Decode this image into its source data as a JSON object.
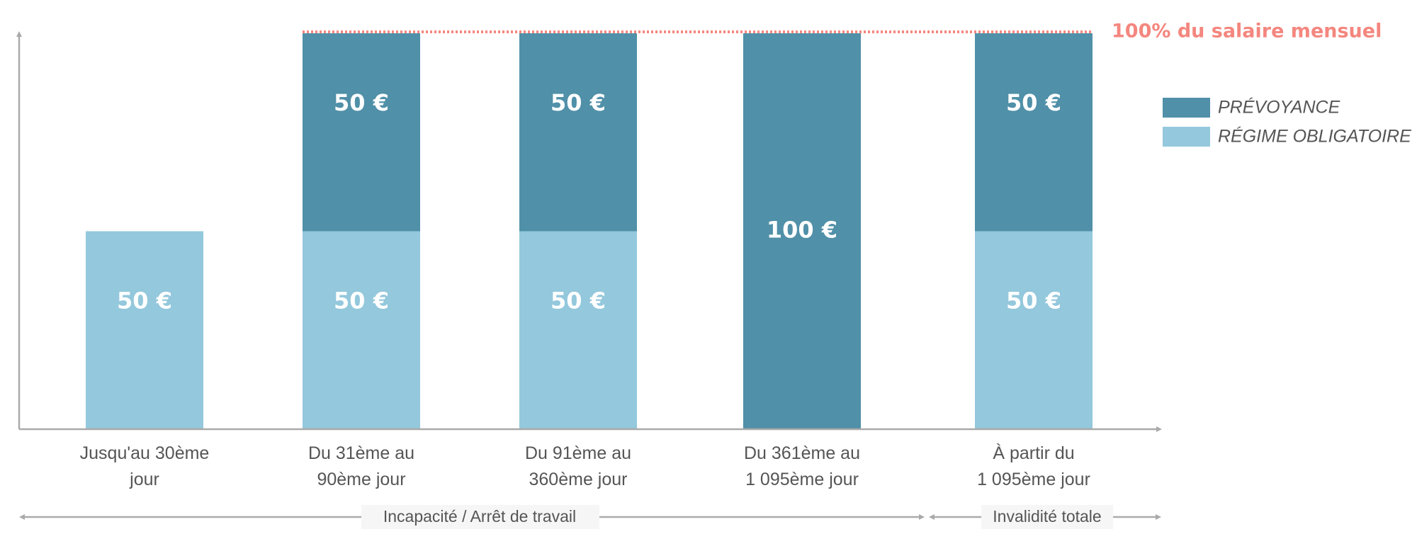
{
  "chart_data": {
    "type": "bar",
    "stacked": true,
    "categories": [
      [
        "Jusqu'au 30ème",
        "jour"
      ],
      [
        "Du 31ème au",
        "90ème jour"
      ],
      [
        "Du 91ème au",
        "360ème jour"
      ],
      [
        "Du 361ème au",
        "1 095ème jour"
      ],
      [
        "À partir du",
        "1 095ème jour"
      ]
    ],
    "series": [
      {
        "name": "RÉGIME OBLIGATOIRE",
        "color": "#94c8dc",
        "values": [
          50,
          50,
          50,
          0,
          50
        ],
        "labels": [
          "50 €",
          "50 €",
          "50 €",
          "",
          "50 €"
        ]
      },
      {
        "name": "PRÉVOYANCE",
        "color": "#5090a8",
        "values": [
          0,
          50,
          50,
          100,
          50
        ],
        "labels": [
          "",
          "50 €",
          "50 €",
          "100 €",
          "50 €"
        ]
      }
    ],
    "ylim": [
      0,
      100
    ],
    "reference_line": {
      "value": 100,
      "label": "100% du salaire mensuel",
      "color": "#f4877f",
      "style": "dotted"
    },
    "legend": {
      "placement": "right",
      "items": [
        "PRÉVOYANCE",
        "RÉGIME OBLIGATOIRE"
      ]
    },
    "groups": [
      {
        "label": "Incapacité / Arrêt de travail",
        "span": [
          0,
          3
        ]
      },
      {
        "label": "Invalidité totale",
        "span": [
          4,
          4
        ]
      }
    ],
    "grid": false
  }
}
